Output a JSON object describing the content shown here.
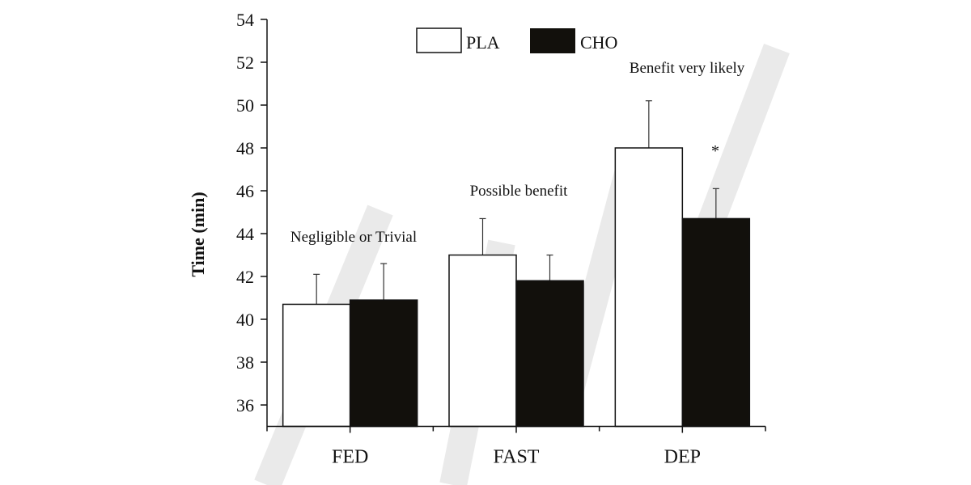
{
  "chart_data": {
    "type": "bar",
    "title": "",
    "xlabel": "",
    "ylabel": "Time (min)",
    "ylim": [
      35,
      54
    ],
    "yticks": [
      36,
      38,
      40,
      42,
      44,
      46,
      48,
      50,
      52,
      54
    ],
    "categories": [
      "FED",
      "FAST",
      "DEP"
    ],
    "series": [
      {
        "name": "PLA",
        "color": "#ffffff",
        "values": [
          40.7,
          43.0,
          48.0
        ],
        "error_upper": [
          42.1,
          44.7,
          50.2
        ]
      },
      {
        "name": "CHO",
        "color": "#12100c",
        "values": [
          40.9,
          41.8,
          44.7
        ],
        "error_upper": [
          42.6,
          43.0,
          46.1
        ]
      }
    ],
    "annotations": [
      "Negligible or Trivial",
      "Possible benefit",
      "Benefit very likely"
    ],
    "significance_marker": "*",
    "legend_position": "top",
    "grid": false
  }
}
